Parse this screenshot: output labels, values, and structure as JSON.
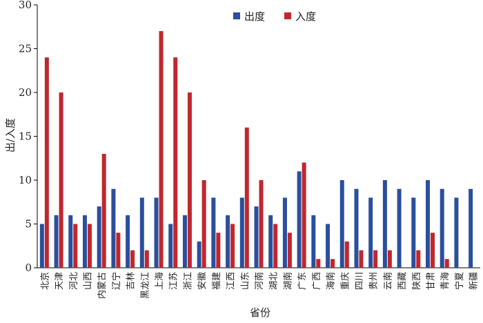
{
  "chart_data": {
    "type": "bar",
    "xlabel": "省份",
    "ylabel": "出/入度",
    "ylim": [
      0,
      30
    ],
    "yticks": [
      0,
      5,
      10,
      15,
      20,
      25,
      30
    ],
    "grid": false,
    "legend": "top-center",
    "categories": [
      "北京",
      "天津",
      "河北",
      "山西",
      "内蒙古",
      "辽宁",
      "吉林",
      "黑龙江",
      "上海",
      "江苏",
      "浙江",
      "安徽",
      "福建",
      "江西",
      "山东",
      "河南",
      "湖北",
      "湖南",
      "广东",
      "广西",
      "海南",
      "重庆",
      "四川",
      "贵州",
      "云南",
      "西藏",
      "陕西",
      "甘肃",
      "青海",
      "宁夏",
      "新疆"
    ],
    "series": [
      {
        "name": "出度",
        "color": "#2a4f9c",
        "values": [
          5,
          6,
          6,
          6,
          7,
          9,
          6,
          8,
          8,
          5,
          6,
          3,
          8,
          6,
          8,
          7,
          6,
          8,
          11,
          6,
          5,
          10,
          9,
          8,
          10,
          9,
          8,
          10,
          9,
          8,
          9
        ]
      },
      {
        "name": "入度",
        "color": "#c0272d",
        "values": [
          24,
          20,
          5,
          5,
          13,
          4,
          2,
          2,
          27,
          24,
          20,
          10,
          4,
          5,
          16,
          10,
          5,
          4,
          12,
          1,
          1,
          3,
          2,
          2,
          2,
          0,
          2,
          4,
          1,
          0,
          0
        ]
      }
    ]
  }
}
